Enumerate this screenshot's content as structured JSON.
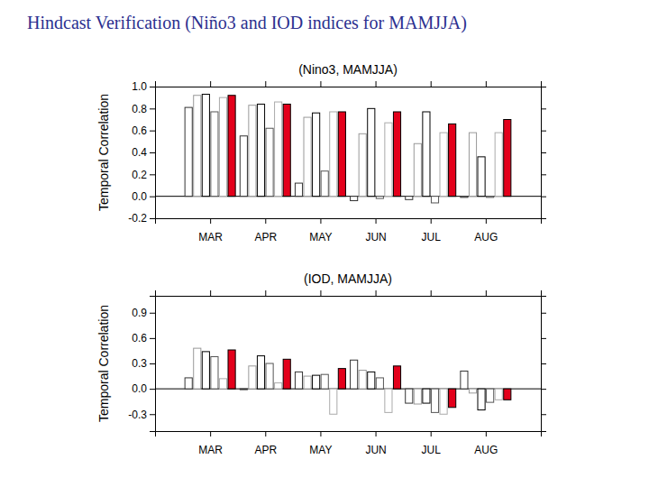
{
  "title": "Hindcast Verification (Niño3 and IOD indices for MAMJJA)",
  "chart_data": [
    {
      "type": "bar",
      "title": "(Nino3, MAMJJA)",
      "y_label": "Temporal Correlation",
      "categories": [
        "MAR",
        "APR",
        "MAY",
        "JUN",
        "JUL",
        "AUG"
      ],
      "series": [
        {
          "color": "#333333",
          "values": [
            0.81,
            0.55,
            0.12,
            -0.04,
            -0.03,
            -0.01
          ]
        },
        {
          "color": "#999999",
          "values": [
            0.92,
            0.83,
            0.72,
            0.57,
            0.48,
            0.58
          ]
        },
        {
          "color": "#000000",
          "values": [
            0.93,
            0.84,
            0.76,
            0.8,
            0.77,
            0.36
          ]
        },
        {
          "color": "#555555",
          "values": [
            0.77,
            0.62,
            0.23,
            -0.02,
            -0.06,
            -0.01
          ]
        },
        {
          "color": "#aaaaaa",
          "values": [
            0.9,
            0.86,
            0.77,
            0.67,
            0.58,
            0.58
          ]
        },
        {
          "color": "#e3001b",
          "values": [
            0.92,
            0.84,
            0.77,
            0.77,
            0.66,
            0.7
          ]
        }
      ],
      "ylim": [
        -0.2,
        1.0
      ],
      "yticks": [
        -0.2,
        {
          "value": 0,
          "label": "0.0"
        },
        0.2,
        0.4,
        0.6,
        0.8,
        {
          "value": 1,
          "label": "1.0"
        }
      ]
    },
    {
      "type": "bar",
      "title": "(IOD, MAMJJA)",
      "y_label": "Temporal Correlation",
      "categories": [
        "MAR",
        "APR",
        "MAY",
        "JUN",
        "JUL",
        "AUG"
      ],
      "series": [
        {
          "color": "#333333",
          "values": [
            0.13,
            -0.01,
            0.2,
            0.34,
            -0.17,
            0.21
          ]
        },
        {
          "color": "#999999",
          "values": [
            0.48,
            0.27,
            0.15,
            0.22,
            -0.18,
            -0.05
          ]
        },
        {
          "color": "#000000",
          "values": [
            0.44,
            0.39,
            0.16,
            0.2,
            -0.17,
            -0.25
          ]
        },
        {
          "color": "#555555",
          "values": [
            0.38,
            0.3,
            0.17,
            0.13,
            -0.28,
            -0.16
          ]
        },
        {
          "color": "#aaaaaa",
          "values": [
            0.12,
            0.07,
            -0.3,
            -0.28,
            -0.3,
            -0.13
          ]
        },
        {
          "color": "#e3001b",
          "values": [
            0.46,
            0.35,
            0.24,
            0.27,
            -0.22,
            -0.13
          ]
        }
      ],
      "ylim": [
        -0.5,
        1.1
      ],
      "yticks": [
        -0.3,
        {
          "value": 0,
          "label": "0.0"
        },
        0.3,
        0.6,
        0.9
      ]
    }
  ]
}
